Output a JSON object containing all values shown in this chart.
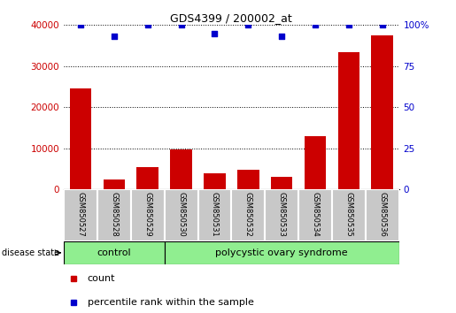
{
  "title": "GDS4399 / 200002_at",
  "samples": [
    "GSM850527",
    "GSM850528",
    "GSM850529",
    "GSM850530",
    "GSM850531",
    "GSM850532",
    "GSM850533",
    "GSM850534",
    "GSM850535",
    "GSM850536"
  ],
  "counts": [
    24500,
    2500,
    5500,
    9800,
    4000,
    4800,
    3000,
    13000,
    33500,
    37500
  ],
  "percentile_ranks": [
    100,
    93,
    100,
    100,
    95,
    100,
    93,
    100,
    100,
    100
  ],
  "ylim_left": [
    0,
    40000
  ],
  "ylim_right": [
    0,
    100
  ],
  "yticks_left": [
    0,
    10000,
    20000,
    30000,
    40000
  ],
  "yticks_right": [
    0,
    25,
    50,
    75,
    100
  ],
  "bar_color": "#cc0000",
  "scatter_color": "#0000cc",
  "control_label": "control",
  "disease_label": "polycystic ovary syndrome",
  "state_label": "disease state",
  "control_indices": [
    0,
    1,
    2
  ],
  "disease_indices": [
    3,
    4,
    5,
    6,
    7,
    8,
    9
  ],
  "control_bg": "#90EE90",
  "disease_bg": "#90EE90",
  "legend_count_label": "count",
  "legend_pct_label": "percentile rank within the sample",
  "bg_color": "#ffffff",
  "tick_bg": "#c8c8c8"
}
